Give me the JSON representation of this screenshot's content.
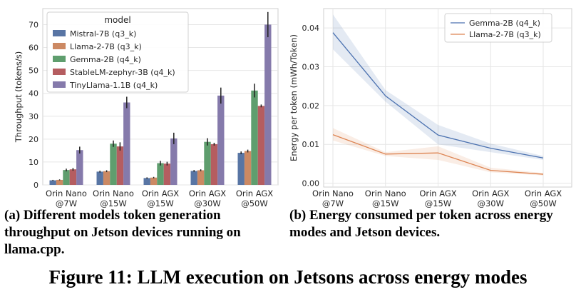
{
  "figure_title": "Figure 11: LLM execution on Jetsons across energy modes",
  "chart_data": [
    {
      "type": "bar",
      "caption": "(a) Different models token generation throughput on Jetson devices running on llama.cpp.",
      "title": "",
      "xlabel": "",
      "ylabel": "Throughput (tokens/s)",
      "ylim": [
        0,
        77
      ],
      "yticks": [
        0,
        10,
        20,
        30,
        40,
        50,
        60,
        70
      ],
      "grid": true,
      "legend": {
        "title": "model",
        "position": "top-left"
      },
      "categories": [
        [
          "Orin Nano",
          "@7W"
        ],
        [
          "Orin Nano",
          "@15W"
        ],
        [
          "Orin AGX",
          "@15W"
        ],
        [
          "Orin AGX",
          "@30W"
        ],
        [
          "Orin AGX",
          "@50W"
        ]
      ],
      "series": [
        {
          "name": "Mistral-7B (q3_k)",
          "color": "#5875a4",
          "values": [
            2.0,
            5.8,
            3.0,
            6.1,
            14.0
          ],
          "errors": [
            0.2,
            0.4,
            0.3,
            0.4,
            0.6
          ]
        },
        {
          "name": "Llama-2-7B (q3_k)",
          "color": "#cc8963",
          "values": [
            2.2,
            6.0,
            3.2,
            6.4,
            14.8
          ],
          "errors": [
            0.2,
            0.4,
            0.3,
            0.4,
            0.6
          ]
        },
        {
          "name": "Gemma-2B (q4_k)",
          "color": "#5f9e6e",
          "values": [
            6.5,
            18.0,
            9.5,
            18.8,
            41.2
          ],
          "errors": [
            0.6,
            1.4,
            1.0,
            1.6,
            3.0
          ]
        },
        {
          "name": "StableLM-zephyr-3B (q4_k)",
          "color": "#b55d60",
          "values": [
            6.8,
            16.8,
            9.3,
            17.8,
            34.5
          ],
          "errors": [
            0.6,
            1.8,
            0.8,
            0.6,
            0.6
          ]
        },
        {
          "name": "TinyLlama-1.1B (q4_k)",
          "color": "#857aab",
          "values": [
            15.2,
            36.0,
            20.3,
            39.0,
            70.0
          ],
          "errors": [
            1.5,
            2.5,
            2.5,
            3.5,
            5.5
          ]
        }
      ]
    },
    {
      "type": "line",
      "caption": "(b) Energy consumed per token across energy modes and Jetson devices.",
      "title": "",
      "xlabel": "",
      "ylabel": "Energy per token (mWh/Token)",
      "ylim": [
        -0.001,
        0.045
      ],
      "yticks": [
        0.0,
        0.01,
        0.02,
        0.03,
        0.04
      ],
      "ytick_labels": [
        "0.00",
        "0.01",
        "0.02",
        "0.03",
        "0.04"
      ],
      "grid": true,
      "legend": {
        "position": "top-right"
      },
      "categories": [
        [
          "Orin Nano",
          "@7W"
        ],
        [
          "Orin Nano",
          "@15W"
        ],
        [
          "Orin AGX",
          "@15W"
        ],
        [
          "Orin AGX",
          "@30W"
        ],
        [
          "Orin AGX",
          "@50W"
        ]
      ],
      "series": [
        {
          "name": "Gemma-2B (q4_k)",
          "color": "#4c72b0",
          "values": [
            0.0388,
            0.0225,
            0.0124,
            0.009,
            0.0065
          ],
          "lower": [
            0.0345,
            0.021,
            0.01,
            0.008,
            0.006
          ],
          "upper": [
            0.0435,
            0.024,
            0.015,
            0.0102,
            0.007
          ]
        },
        {
          "name": "Llama-2-7B (q3_k)",
          "color": "#dd8452",
          "values": [
            0.0125,
            0.0075,
            0.0078,
            0.0033,
            0.0023
          ],
          "lower": [
            0.011,
            0.007,
            0.006,
            0.0028,
            0.002
          ],
          "upper": [
            0.0142,
            0.008,
            0.0095,
            0.004,
            0.0026
          ]
        }
      ]
    }
  ]
}
